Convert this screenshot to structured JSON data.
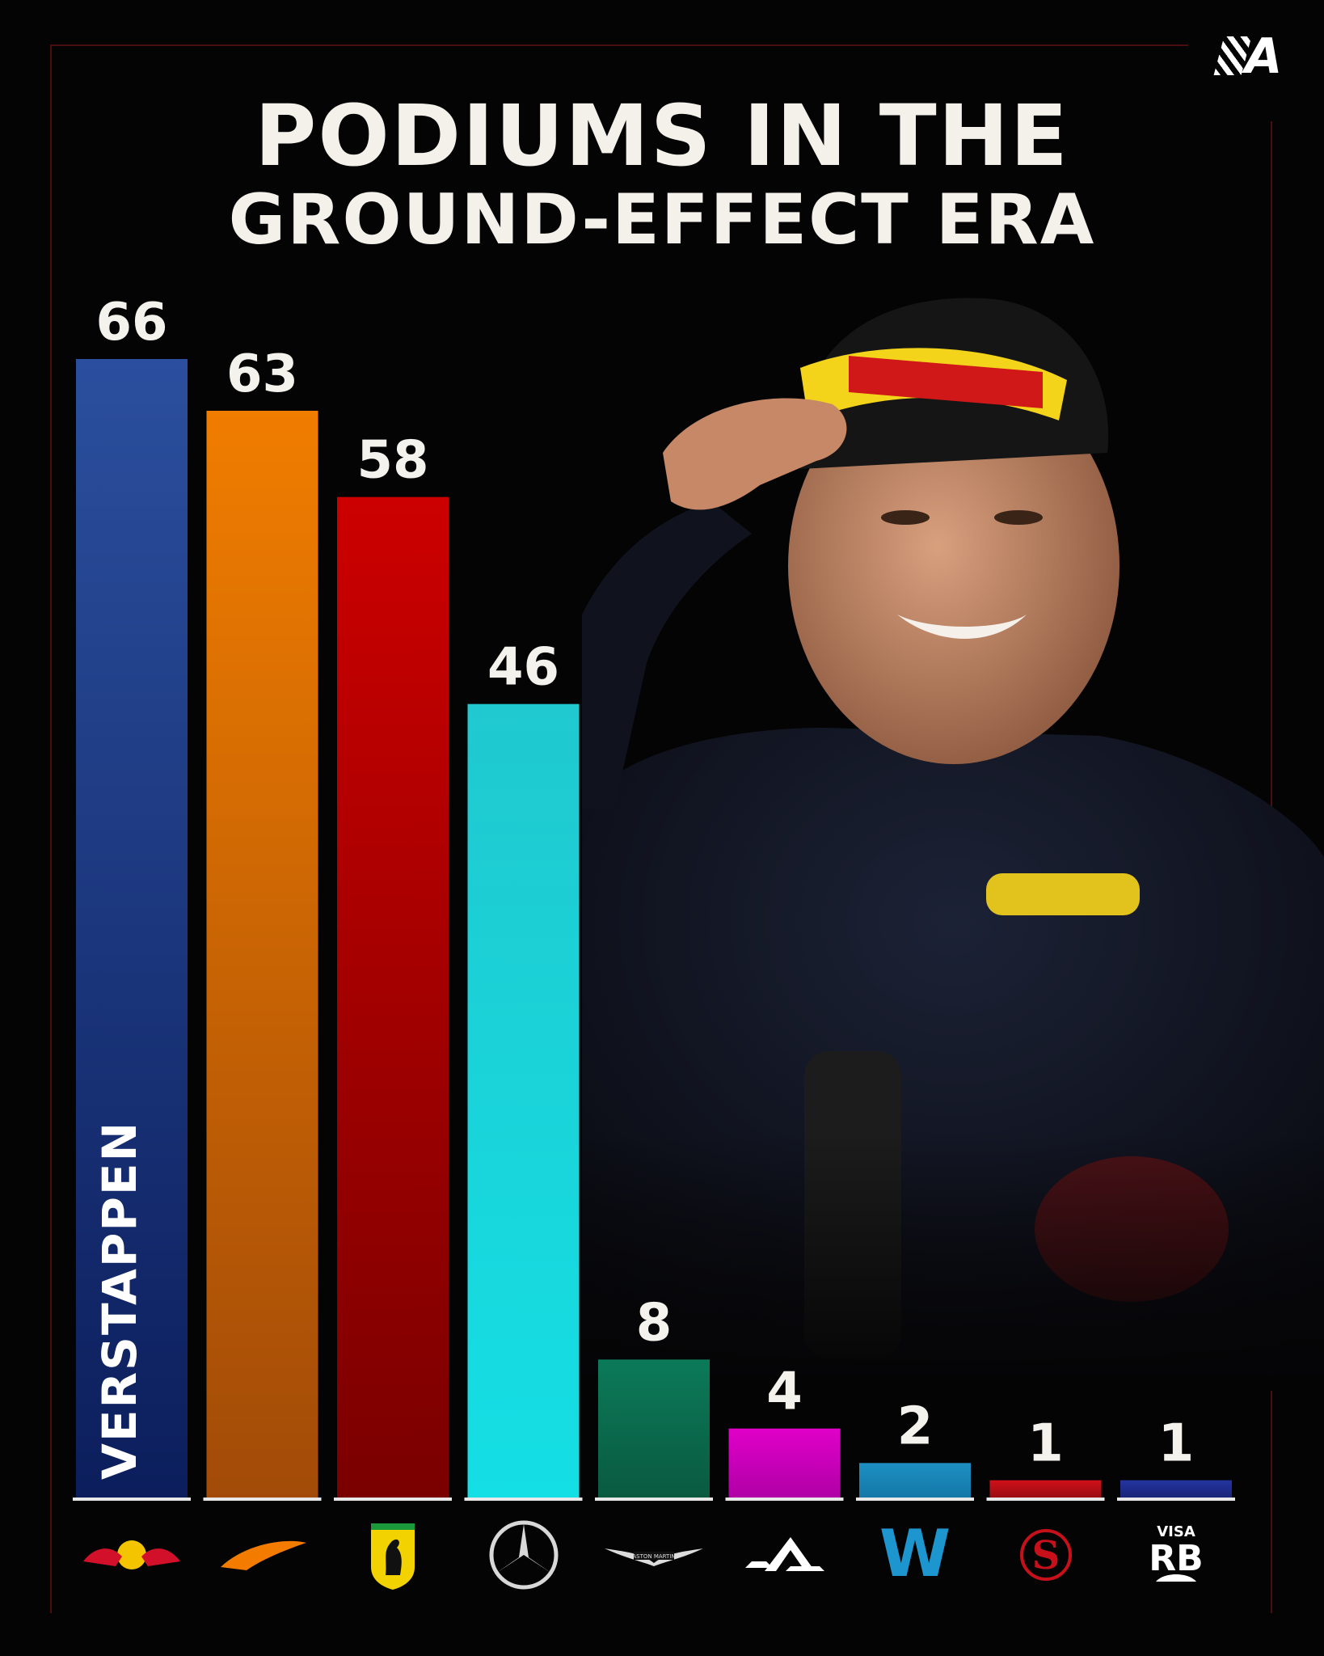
{
  "header": {
    "title_line1": "PODIUMS IN THE",
    "title_line2": "GROUND-EFFECT ERA",
    "brand_logo_text": "A"
  },
  "highlight_label": "VERSTAPPEN",
  "colors": {
    "background": "#050405",
    "title": "#f3f1ea",
    "frame": "#4a0e0e"
  },
  "chart_data": {
    "type": "bar",
    "title": "PODIUMS IN THE GROUND-EFFECT ERA",
    "xlabel": "",
    "ylabel": "",
    "ylim": [
      0,
      66
    ],
    "grid": false,
    "categories": [
      "Red Bull",
      "McLaren",
      "Ferrari",
      "Mercedes",
      "Aston Martin",
      "Alpine",
      "Williams",
      "Sauber",
      "Visa RB"
    ],
    "values": [
      66,
      63,
      58,
      46,
      8,
      4,
      2,
      1,
      1
    ],
    "bar_colors_top": [
      "#2b4f9e",
      "#f07d00",
      "#cc0000",
      "#1fc9cf",
      "#0b7a58",
      "#e000c8",
      "#1d8fc2",
      "#d0101a",
      "#2434a0"
    ],
    "bar_colors_bottom": [
      "#0c1e5c",
      "#a24b08",
      "#7a0000",
      "#14dfe4",
      "#0a5a40",
      "#b000a6",
      "#1478a8",
      "#9a0c12",
      "#1a2478"
    ]
  },
  "team_logos": [
    {
      "icon": "red-bull-logo-icon"
    },
    {
      "icon": "mclaren-logo-icon"
    },
    {
      "icon": "ferrari-logo-icon"
    },
    {
      "icon": "mercedes-logo-icon"
    },
    {
      "icon": "aston-martin-logo-icon",
      "text": "ASTON MARTIN"
    },
    {
      "icon": "alpine-logo-icon"
    },
    {
      "icon": "williams-logo-icon",
      "text": "W"
    },
    {
      "icon": "sauber-logo-icon",
      "text": "S"
    },
    {
      "icon": "visa-rb-logo-icon",
      "text_top": "VISA",
      "text_main": "RB"
    }
  ]
}
